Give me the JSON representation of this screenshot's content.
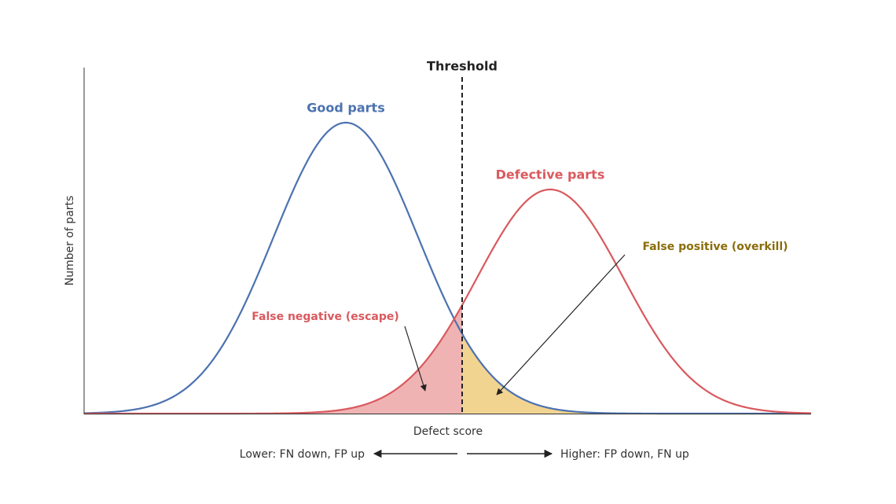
{
  "threshold_label": "Threshold",
  "good_label": "Good parts",
  "defective_label": "Defective parts",
  "false_positive_label": "False positive (overkill)",
  "false_negative_label": "False negative (escape)",
  "y_axis_label": "Number of parts",
  "x_axis_label": "Defect score",
  "lower_note": "Lower: FN down, FP up",
  "higher_note": "Higher: FP down, FN up"
}
